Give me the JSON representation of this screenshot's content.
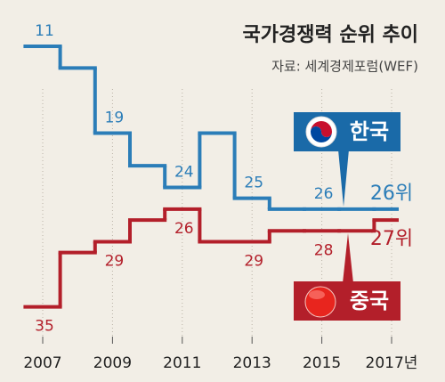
{
  "chart_data": {
    "type": "step",
    "title": "국가경쟁력 순위 추이",
    "subtitle": "자료: 세계경제포럼(WEF)",
    "x": [
      2007,
      2008,
      2009,
      2010,
      2011,
      2012,
      2013,
      2014,
      2015,
      2016,
      2017
    ],
    "xlim": [
      2006.5,
      2017.5
    ],
    "xticks": [
      2007,
      2009,
      2011,
      2013,
      2015,
      {
        "value": 2017,
        "label": "2017년"
      }
    ],
    "ylim": [
      37,
      7
    ],
    "grid": true,
    "series": [
      {
        "name": "한국",
        "color": "#2b7db8",
        "values": [
          11,
          13,
          19,
          22,
          24,
          19,
          25,
          26,
          26,
          26,
          26
        ],
        "value_labels": [
          "11",
          null,
          "19",
          null,
          "24",
          null,
          "25",
          null,
          "26",
          null,
          "26위"
        ],
        "label_side": "above"
      },
      {
        "name": "중국",
        "color": "#b31f2a",
        "values": [
          35,
          30,
          29,
          27,
          26,
          29,
          29,
          28,
          28,
          28,
          27
        ],
        "value_labels": [
          "35",
          null,
          "29",
          null,
          "26",
          null,
          "29",
          null,
          "28",
          null,
          "27위"
        ],
        "label_side": "below"
      }
    ]
  }
}
